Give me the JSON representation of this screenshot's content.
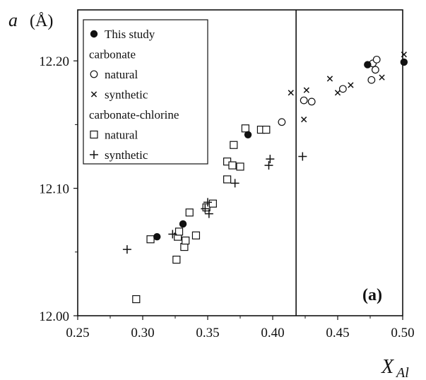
{
  "chart_data": {
    "type": "scatter",
    "panel_label": "(a)",
    "ylabel": "a",
    "ylabel_unit": "(Å)",
    "xlabel": "X",
    "xlabel_sub": "Al",
    "xlim": [
      0.25,
      0.5
    ],
    "ylim": [
      12.0,
      12.24
    ],
    "xticks": [
      0.25,
      0.3,
      0.35,
      0.4,
      0.45,
      0.5
    ],
    "xtick_labels": [
      "0.25",
      "0.30",
      "0.35",
      "0.40",
      "0.45",
      "0.50"
    ],
    "yticks": [
      12.0,
      12.1,
      12.2
    ],
    "ytick_labels": [
      "12.00",
      "12.10",
      "12.20"
    ],
    "vline_x": 0.418,
    "legend_position": "top-left",
    "legend": [
      {
        "kind": "entry",
        "marker": "filled-circle",
        "label": "This study"
      },
      {
        "kind": "heading",
        "label": "carbonate"
      },
      {
        "kind": "entry",
        "marker": "open-circle",
        "label": "natural"
      },
      {
        "kind": "entry",
        "marker": "x",
        "label": "synthetic"
      },
      {
        "kind": "heading",
        "label": "carbonate-chlorine"
      },
      {
        "kind": "entry",
        "marker": "open-square",
        "label": "natural"
      },
      {
        "kind": "entry",
        "marker": "plus",
        "label": "synthetic"
      }
    ],
    "series": [
      {
        "name": "This study",
        "marker": "filled-circle",
        "points": [
          [
            0.311,
            12.062
          ],
          [
            0.331,
            12.072
          ],
          [
            0.381,
            12.142
          ],
          [
            0.473,
            12.197
          ],
          [
            0.501,
            12.199
          ]
        ]
      },
      {
        "name": "carbonate natural",
        "marker": "open-circle",
        "points": [
          [
            0.407,
            12.152
          ],
          [
            0.424,
            12.169
          ],
          [
            0.43,
            12.168
          ],
          [
            0.454,
            12.178
          ],
          [
            0.476,
            12.185
          ],
          [
            0.477,
            12.198
          ],
          [
            0.479,
            12.193
          ],
          [
            0.48,
            12.201
          ]
        ]
      },
      {
        "name": "carbonate synthetic",
        "marker": "x",
        "points": [
          [
            0.414,
            12.175
          ],
          [
            0.424,
            12.154
          ],
          [
            0.426,
            12.177
          ],
          [
            0.444,
            12.186
          ],
          [
            0.45,
            12.175
          ],
          [
            0.46,
            12.181
          ],
          [
            0.484,
            12.187
          ],
          [
            0.501,
            12.205
          ]
        ]
      },
      {
        "name": "carbonate-chlorine natural",
        "marker": "open-square",
        "points": [
          [
            0.295,
            12.013
          ],
          [
            0.306,
            12.06
          ],
          [
            0.326,
            12.044
          ],
          [
            0.327,
            12.062
          ],
          [
            0.328,
            12.066
          ],
          [
            0.332,
            12.054
          ],
          [
            0.333,
            12.059
          ],
          [
            0.336,
            12.081
          ],
          [
            0.341,
            12.063
          ],
          [
            0.349,
            12.085
          ],
          [
            0.354,
            12.088
          ],
          [
            0.365,
            12.121
          ],
          [
            0.365,
            12.107
          ],
          [
            0.369,
            12.118
          ],
          [
            0.37,
            12.134
          ],
          [
            0.375,
            12.117
          ],
          [
            0.379,
            12.147
          ],
          [
            0.391,
            12.146
          ],
          [
            0.395,
            12.146
          ]
        ]
      },
      {
        "name": "carbonate-chlorine synthetic",
        "marker": "plus",
        "points": [
          [
            0.288,
            12.052
          ],
          [
            0.323,
            12.064
          ],
          [
            0.348,
            12.084
          ],
          [
            0.35,
            12.089
          ],
          [
            0.351,
            12.08
          ],
          [
            0.371,
            12.104
          ],
          [
            0.397,
            12.118
          ],
          [
            0.398,
            12.123
          ],
          [
            0.423,
            12.125
          ]
        ]
      }
    ]
  }
}
